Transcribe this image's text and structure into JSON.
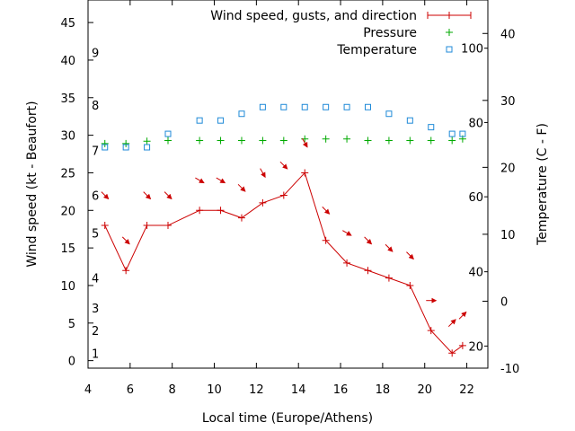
{
  "chart_data": {
    "type": "line",
    "title": "",
    "xlabel": "Local time (Europe/Athens)",
    "ylabel_left": "Wind speed (kt - Beaufort)",
    "ylabel_right": "Temperature (C - F)",
    "xlim": [
      4,
      23
    ],
    "ylim_left": [
      -1,
      48
    ],
    "ylim_right": [
      -10,
      45
    ],
    "x_ticks": [
      4,
      6,
      8,
      10,
      12,
      14,
      16,
      18,
      20,
      22
    ],
    "y_ticks_left": [
      0,
      5,
      10,
      15,
      20,
      25,
      30,
      35,
      40,
      45
    ],
    "y_ticks_right": [
      -10,
      0,
      10,
      20,
      30,
      40
    ],
    "fahrenheit_labels": [
      {
        "label": "20",
        "temp_c": -6.7
      },
      {
        "label": "40",
        "temp_c": 4.4
      },
      {
        "label": "60",
        "temp_c": 15.6
      },
      {
        "label": "80",
        "temp_c": 26.7
      },
      {
        "label": "100",
        "temp_c": 37.8
      }
    ],
    "beaufort_labels": [
      {
        "label": "1",
        "kt": 1
      },
      {
        "label": "2",
        "kt": 4
      },
      {
        "label": "3",
        "kt": 7
      },
      {
        "label": "4",
        "kt": 11
      },
      {
        "label": "5",
        "kt": 17
      },
      {
        "label": "6",
        "kt": 22
      },
      {
        "label": "7",
        "kt": 28
      },
      {
        "label": "8",
        "kt": 34
      },
      {
        "label": "9",
        "kt": 41
      }
    ],
    "legend_position": "top-right",
    "series": [
      {
        "name": "Wind speed, gusts, and direction",
        "color": "#cc0000",
        "axis": "left",
        "x": [
          4.8,
          5.8,
          6.8,
          7.8,
          9.3,
          10.3,
          11.3,
          12.3,
          13.3,
          14.3,
          15.3,
          16.3,
          17.3,
          18.3,
          19.3,
          20.3,
          21.3,
          21.8
        ],
        "y": [
          18,
          12,
          18,
          18,
          20,
          20,
          19,
          21,
          22,
          25,
          16,
          13,
          12,
          11,
          10,
          4,
          1,
          2
        ]
      },
      {
        "name": "Pressure",
        "color": "#00aa00",
        "axis": "left",
        "x": [
          4.8,
          5.8,
          6.8,
          7.8,
          9.3,
          10.3,
          11.3,
          12.3,
          13.3,
          14.3,
          15.3,
          16.3,
          17.3,
          18.3,
          19.3,
          20.3,
          21.3,
          21.8
        ],
        "y": [
          28.9,
          28.9,
          29.2,
          29.3,
          29.3,
          29.3,
          29.3,
          29.3,
          29.3,
          29.5,
          29.5,
          29.5,
          29.3,
          29.3,
          29.3,
          29.3,
          29.3,
          29.5
        ]
      },
      {
        "name": "Temperature",
        "color": "#1f8ad8",
        "axis": "right",
        "x": [
          4.8,
          5.8,
          6.8,
          7.8,
          9.3,
          10.3,
          11.3,
          12.3,
          13.3,
          14.3,
          15.3,
          16.3,
          17.3,
          18.3,
          19.3,
          20.3,
          21.3,
          21.8
        ],
        "y": [
          23,
          23,
          23,
          25,
          27,
          27,
          28,
          29,
          29,
          29,
          29,
          29,
          29,
          28,
          27,
          26,
          25,
          25
        ]
      }
    ],
    "wind_direction": {
      "x": [
        4.8,
        5.8,
        6.8,
        7.8,
        9.3,
        10.3,
        11.3,
        12.3,
        13.3,
        14.3,
        15.3,
        16.3,
        17.3,
        18.3,
        19.3,
        20.3,
        21.3,
        21.8
      ],
      "y": [
        22,
        16,
        22,
        22,
        24,
        24,
        23,
        25,
        26,
        29,
        20,
        17,
        16,
        15,
        14,
        8,
        5,
        6
      ],
      "to_bearing_deg": [
        135,
        135,
        135,
        135,
        120,
        120,
        135,
        150,
        135,
        150,
        135,
        120,
        135,
        135,
        135,
        90,
        45,
        45
      ]
    }
  }
}
